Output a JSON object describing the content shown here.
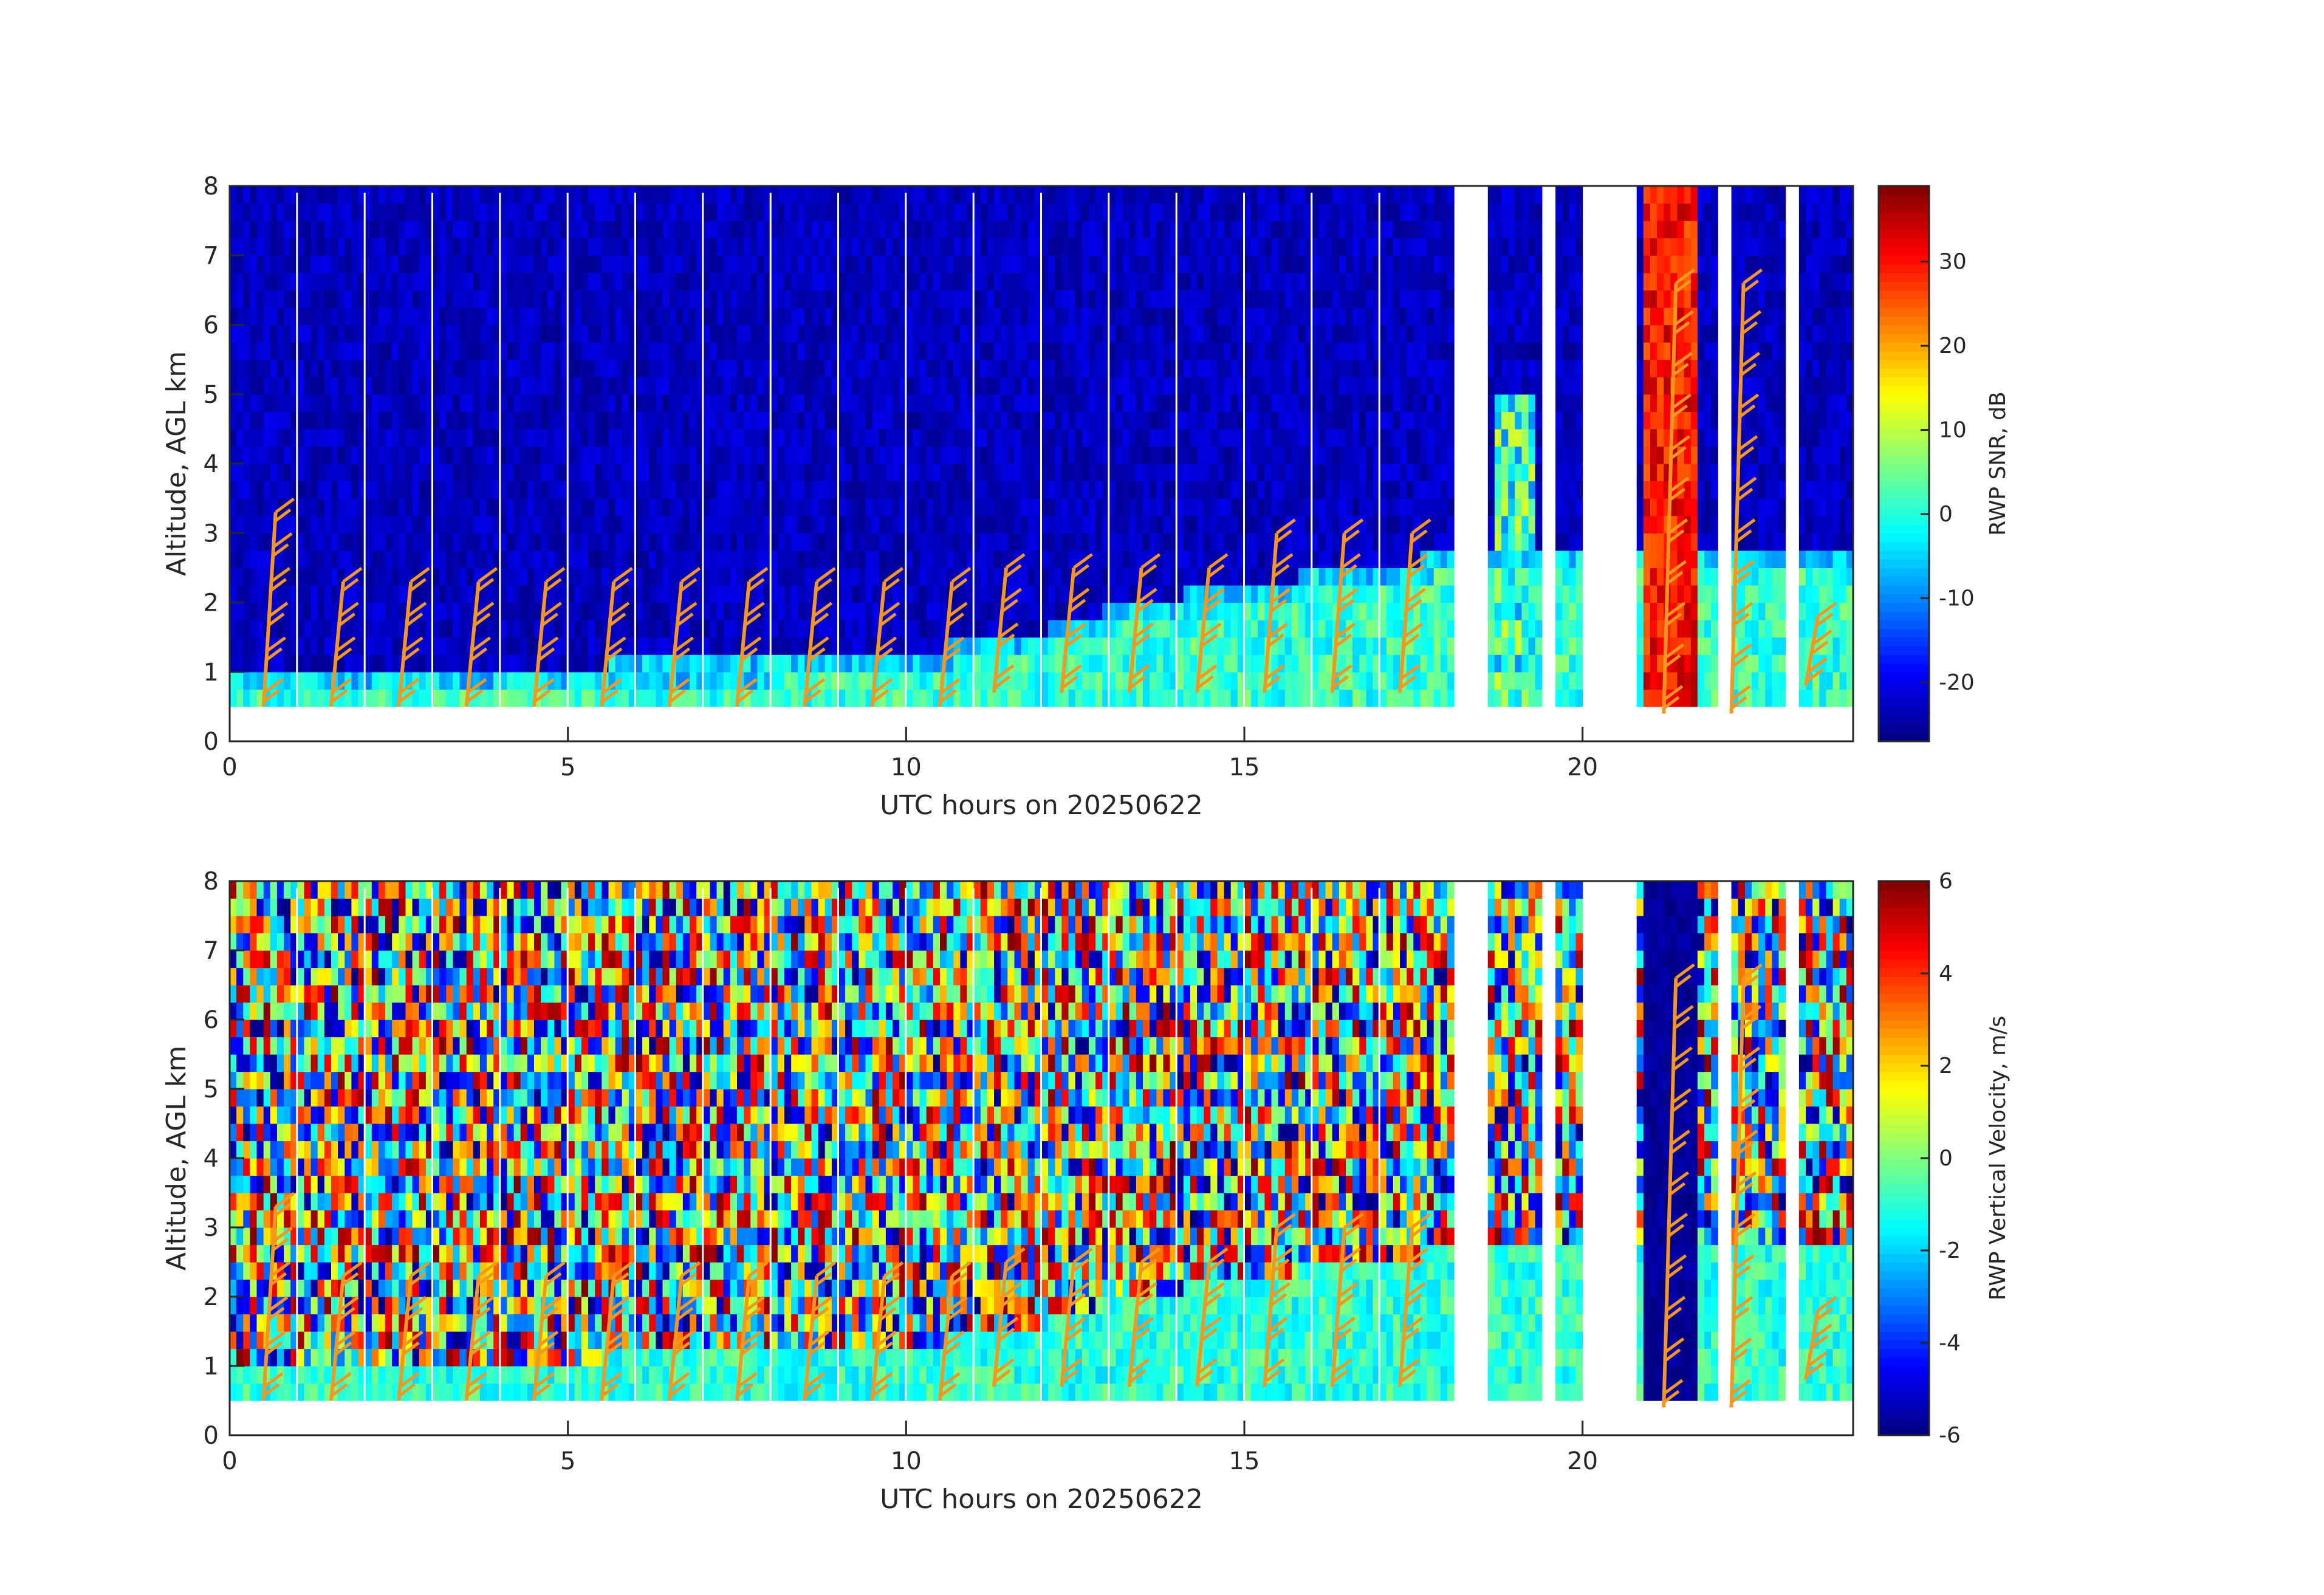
{
  "chart_data": [
    {
      "type": "heatmap",
      "title": "",
      "xlabel": "UTC hours on 20250622",
      "ylabel": "Altitude, AGL km",
      "colorbar_label": "RWP SNR, dB",
      "xlim": [
        0,
        24
      ],
      "ylim": [
        0,
        8
      ],
      "clim": [
        -27,
        39
      ],
      "x_ticks": [
        0,
        5,
        10,
        15,
        20
      ],
      "y_ticks": [
        0,
        1,
        2,
        3,
        4,
        5,
        6,
        7,
        8
      ],
      "colorbar_ticks": [
        -20,
        -10,
        0,
        10,
        20,
        30
      ],
      "colormap": "jet",
      "profiler_data_altitude_range_km": [
        0.5,
        7.9
      ],
      "vertical_mode_altitude_range_km": [
        0.25,
        8.0
      ],
      "field_summary": {
        "background_snr_dB": -24,
        "boundary_layer_snr_dB": 5,
        "boundary_layer_top_km": [
          [
            0,
            0.9
          ],
          [
            3,
            0.95
          ],
          [
            8,
            1.05
          ],
          [
            10,
            1.1
          ],
          [
            11,
            1.4
          ],
          [
            12,
            1.5
          ],
          [
            13,
            1.8
          ],
          [
            14,
            2.0
          ],
          [
            15,
            2.1
          ],
          [
            16,
            2.3
          ],
          [
            17,
            2.4
          ],
          [
            18,
            2.6
          ]
        ],
        "convective_precip_snr_dB": 35,
        "convective_precip_hours": [
          20.9,
          21.7
        ]
      },
      "wind_barb_color": "#f5961e"
    },
    {
      "type": "heatmap",
      "title": "",
      "xlabel": "UTC hours on 20250622",
      "ylabel": "Altitude, AGL km",
      "colorbar_label": "RWP Vertical Velocity, m/s",
      "xlim": [
        0,
        24
      ],
      "ylim": [
        0,
        8
      ],
      "clim": [
        -6,
        6
      ],
      "x_ticks": [
        0,
        5,
        10,
        15,
        20
      ],
      "y_ticks": [
        0,
        1,
        2,
        3,
        4,
        5,
        6,
        7,
        8
      ],
      "colorbar_ticks": [
        -6,
        -4,
        -2,
        0,
        2,
        4,
        6
      ],
      "colormap": "jet",
      "field_summary": {
        "noise_above_boundary_layer": "random values between -6 and 6 m/s",
        "boundary_layer_velocity_m_s": -1,
        "convective_precip_velocity_m_s": -6
      },
      "wind_barb_color": "#f5961e"
    }
  ],
  "wind_barbs": {
    "times_hours": [
      0.5,
      1.5,
      2.5,
      3.5,
      4.5,
      5.5,
      6.5,
      7.5,
      8.5,
      9.5,
      10.5,
      11.3,
      12.3,
      13.3,
      14.3,
      15.3,
      16.3,
      17.3,
      21.2,
      22.2,
      23.3
    ],
    "levels_km": [
      [
        0.7,
        1.3,
        1.8,
        2.3,
        2.8,
        3.3
      ],
      [
        0.7,
        1.3,
        1.8,
        2.3
      ],
      [
        0.7,
        1.3,
        1.8,
        2.3
      ],
      [
        0.7,
        1.3,
        1.8,
        2.3
      ],
      [
        0.7,
        1.3,
        1.8,
        2.3
      ],
      [
        0.7,
        1.3,
        1.8,
        2.3
      ],
      [
        0.7,
        1.3,
        1.8,
        2.3
      ],
      [
        0.7,
        1.3,
        1.8,
        2.3
      ],
      [
        0.7,
        1.3,
        1.8,
        2.3
      ],
      [
        0.7,
        1.3,
        1.8,
        2.3
      ],
      [
        0.7,
        1.3,
        1.8,
        2.3
      ],
      [
        0.9,
        1.5,
        2.0,
        2.5
      ],
      [
        0.9,
        1.5,
        2.0,
        2.5
      ],
      [
        0.9,
        1.5,
        2.0,
        2.5
      ],
      [
        0.9,
        1.5,
        2.0,
        2.5
      ],
      [
        0.9,
        1.5,
        2.0,
        2.5,
        3.0
      ],
      [
        0.9,
        1.5,
        2.0,
        2.5,
        3.0
      ],
      [
        0.9,
        1.5,
        2.0,
        2.5,
        3.0
      ],
      [
        0.6,
        1.2,
        1.8,
        2.4,
        3.0,
        3.6,
        4.2,
        4.8,
        5.4,
        6.0,
        6.6
      ],
      [
        0.6,
        1.2,
        1.8,
        2.4,
        3.0,
        3.6,
        4.2,
        4.8,
        5.4,
        6.0,
        6.6
      ],
      [
        1.0,
        1.4,
        1.8
      ]
    ]
  }
}
